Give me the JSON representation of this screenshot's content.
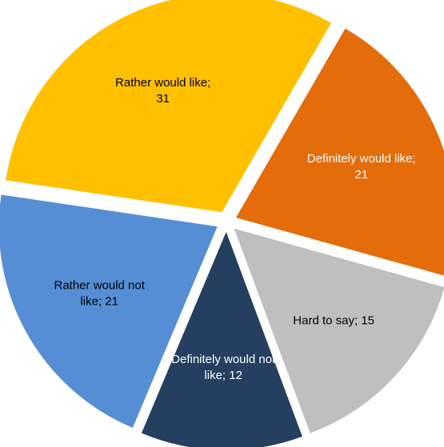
{
  "chart_data": {
    "type": "pie",
    "title": "",
    "start_angle_deg": 30,
    "direction": "clockwise",
    "slices": [
      {
        "label_lines": [
          "Definitely would like;",
          "21"
        ],
        "value": 21,
        "color": "#E46C0A",
        "text_color": "#FFFFFF"
      },
      {
        "label_lines": [
          "Hard to say; 15"
        ],
        "value": 15,
        "color": "#BFBFBF",
        "text_color": "#000000"
      },
      {
        "label_lines": [
          "Definitely would not",
          "like; 12"
        ],
        "value": 12,
        "color": "#243F60",
        "text_color": "#FFFFFF"
      },
      {
        "label_lines": [
          "Rather would not",
          "like; 21"
        ],
        "value": 21,
        "color": "#558ED5",
        "text_color": "#000000"
      },
      {
        "label_lines": [
          "Rather would like;",
          "31"
        ],
        "value": 31,
        "color": "#FFC000",
        "text_color": "#000000"
      }
    ]
  }
}
